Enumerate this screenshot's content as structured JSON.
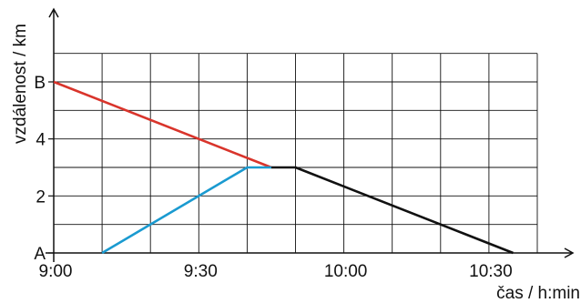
{
  "chart_data": {
    "type": "line",
    "title": "",
    "xlabel": "čas / h:min",
    "ylabel": "vzdálenost / km",
    "x_unit": "min",
    "xlim": [
      0,
      100
    ],
    "ylim": [
      0,
      6
    ],
    "grid": true,
    "x_ticks": [
      {
        "value": 0,
        "label": "9:00"
      },
      {
        "value": 30,
        "label": "9:30"
      },
      {
        "value": 60,
        "label": "10:00"
      },
      {
        "value": 90,
        "label": "10:30"
      }
    ],
    "y_ticks": [
      {
        "value": 0,
        "label": "A"
      },
      {
        "value": 2,
        "label": "2"
      },
      {
        "value": 4,
        "label": "4"
      },
      {
        "value": 6,
        "label": "B"
      }
    ],
    "series": [
      {
        "color": "#d9342b",
        "points": [
          [
            0,
            6
          ],
          [
            45,
            3
          ]
        ]
      },
      {
        "color": "#1a9ad0",
        "points": [
          [
            10,
            0
          ],
          [
            40,
            3
          ],
          [
            45,
            3
          ]
        ]
      },
      {
        "color": "#111111",
        "points": [
          [
            45,
            3
          ],
          [
            50,
            3
          ],
          [
            95,
            0
          ]
        ]
      }
    ]
  }
}
